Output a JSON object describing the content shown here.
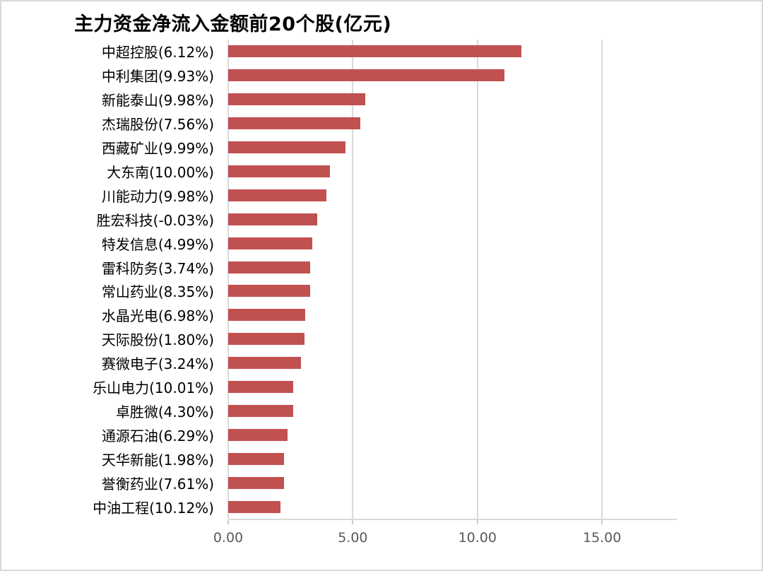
{
  "chart_data": {
    "type": "bar",
    "orientation": "horizontal",
    "title": "主力资金净流入金额前20个股(亿元)",
    "categories": [
      "中超控股(6.12%)",
      "中利集团(9.93%)",
      "新能泰山(9.98%)",
      "杰瑞股份(7.56%)",
      "西藏矿业(9.99%)",
      "大东南(10.00%)",
      "川能动力(9.98%)",
      "胜宏科技(-0.03%)",
      "特发信息(4.99%)",
      "雷科防务(3.74%)",
      "常山药业(8.35%)",
      "水晶光电(6.98%)",
      "天际股份(1.80%)",
      "赛微电子(3.24%)",
      "乐山电力(10.01%)",
      "卓胜微(4.30%)",
      "通源石油(6.29%)",
      "天华新能(1.98%)",
      "誉衡药业(7.61%)",
      "中油工程(10.12%)"
    ],
    "values": [
      11.77,
      11.08,
      5.51,
      5.29,
      4.71,
      4.08,
      3.95,
      3.58,
      3.37,
      3.3,
      3.28,
      3.08,
      3.06,
      2.93,
      2.62,
      2.61,
      2.39,
      2.23,
      2.23,
      2.1
    ],
    "xlabel": "",
    "ylabel": "",
    "xlim": [
      0,
      18
    ],
    "x_ticks": [
      0,
      5,
      10,
      15
    ],
    "x_tick_labels": [
      "0.00",
      "5.00",
      "10.00",
      "15.00"
    ],
    "grid": "vertical-major-on",
    "legend": "none",
    "bar_color": "#c15151",
    "gridline_color": "#d9d9d9",
    "tick_label_color": "#595959",
    "category_label_color": "#000000"
  }
}
